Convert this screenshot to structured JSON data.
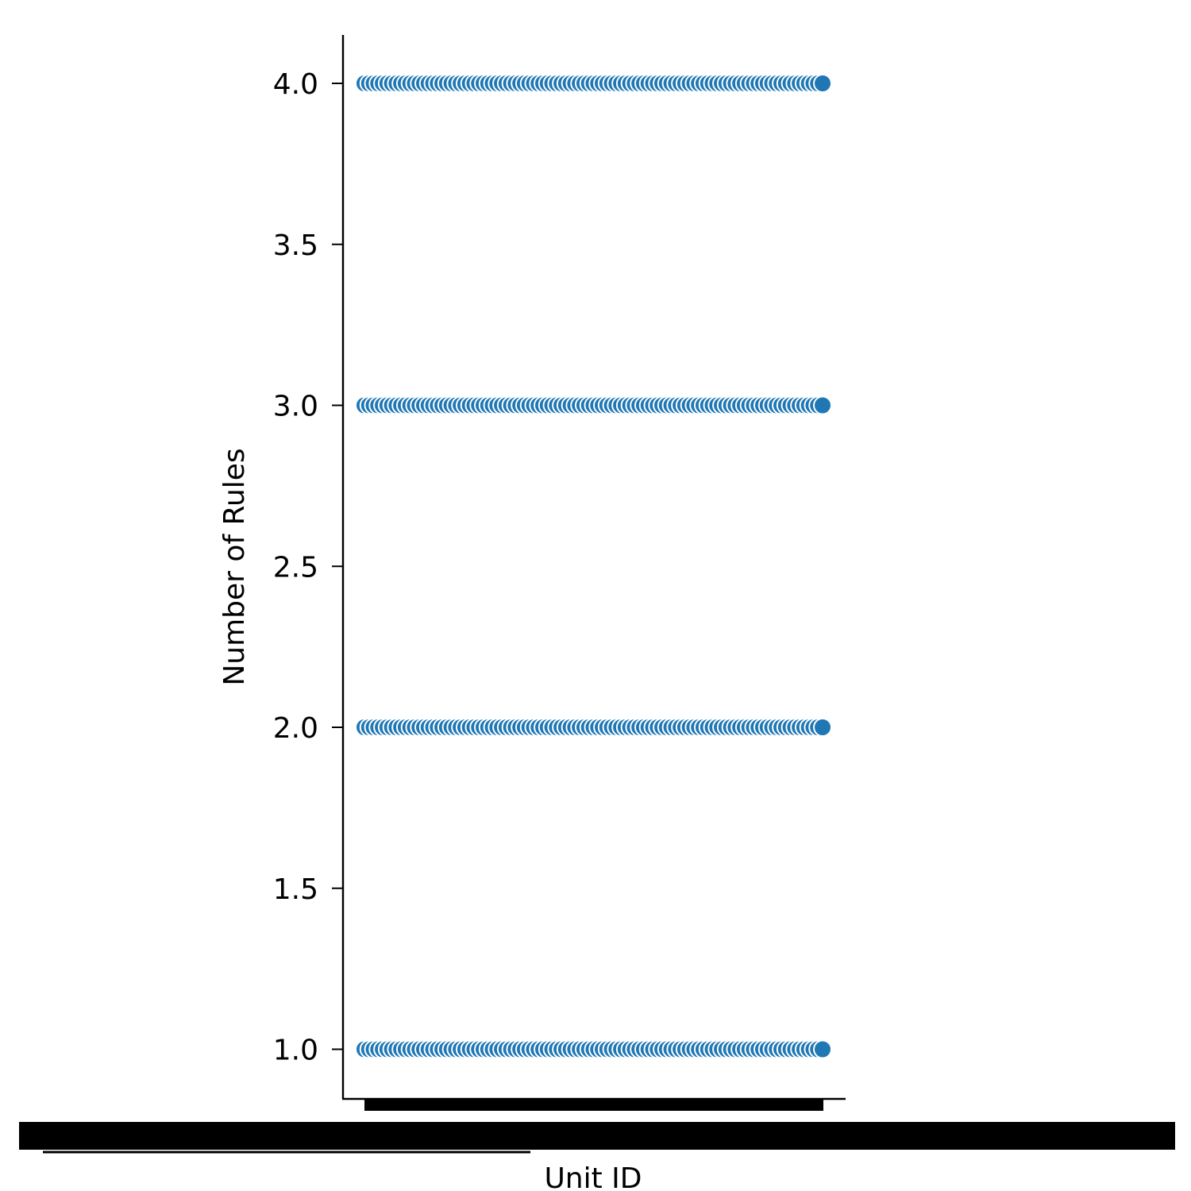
{
  "chart_data": {
    "type": "scatter",
    "title": "",
    "xlabel": "Unit ID",
    "ylabel": "Number of Rules",
    "ylim": [
      0.85,
      4.15
    ],
    "yticks": [
      1.0,
      1.5,
      2.0,
      2.5,
      3.0,
      3.5,
      4.0
    ],
    "ytick_labels": [
      "1.0",
      "1.5",
      "2.0",
      "2.5",
      "3.0",
      "3.5",
      "4.0"
    ],
    "x_ticks_note": "hundreds of categorical Unit ID tick labels overlap into an unreadable black band",
    "grid": false,
    "legend": "none",
    "color": "#1f77b4",
    "series": [
      {
        "x": [
          0.0,
          0.01,
          0.02,
          0.03,
          0.04,
          0.05,
          0.06,
          0.07,
          0.08,
          0.09,
          0.1,
          0.11,
          0.12,
          0.13,
          0.14,
          0.15,
          0.16,
          0.17,
          0.18,
          0.19,
          0.2,
          0.21,
          0.22,
          0.23,
          0.24,
          0.25,
          0.26,
          0.27,
          0.28,
          0.29,
          0.3,
          0.31,
          0.32,
          0.33,
          0.34,
          0.35,
          0.36,
          0.37,
          0.38,
          0.39,
          0.4,
          0.41,
          0.42,
          0.43,
          0.44,
          0.45,
          0.46,
          0.47,
          0.48,
          0.49,
          0.5,
          0.51,
          0.52,
          0.53,
          0.54,
          0.55,
          0.56,
          0.57,
          0.58,
          0.59,
          0.6,
          0.61,
          0.62,
          0.63,
          0.64,
          0.65,
          0.66,
          0.67,
          0.68,
          0.69,
          0.7,
          0.71,
          0.72,
          0.73,
          0.74,
          0.75,
          0.76,
          0.77,
          0.78,
          0.79,
          0.8,
          0.81,
          0.82,
          0.83,
          0.84,
          0.85,
          0.86,
          0.87,
          0.88,
          0.89,
          0.9,
          0.91,
          0.92,
          0.93,
          0.94,
          0.95,
          0.96,
          0.97,
          0.98,
          0.99,
          1.0
        ],
        "y": [
          4,
          4,
          4,
          4,
          4,
          4,
          4,
          4,
          4,
          4,
          4,
          4,
          4,
          4,
          4,
          4,
          4,
          4,
          4,
          4,
          4,
          4,
          4,
          4,
          4,
          4,
          4,
          4,
          4,
          4,
          4,
          4,
          4,
          4,
          4,
          4,
          4,
          4,
          4,
          4,
          4,
          4,
          4,
          4,
          4,
          4,
          4,
          4,
          4,
          4,
          4,
          4,
          4,
          4,
          4,
          4,
          4,
          4,
          4,
          4,
          4,
          4,
          4,
          4,
          4,
          4,
          4,
          4,
          4,
          4,
          4,
          4,
          4,
          4,
          4,
          4,
          4,
          4,
          4,
          4,
          4,
          4,
          4,
          4,
          4,
          4,
          4,
          4,
          4,
          4,
          4,
          4,
          4,
          4,
          4,
          4,
          4,
          4,
          4,
          4,
          4
        ]
      },
      {
        "x": [
          0.0,
          0.01,
          0.02,
          0.03,
          0.04,
          0.05,
          0.06,
          0.07,
          0.08,
          0.09,
          0.1,
          0.11,
          0.12,
          0.13,
          0.14,
          0.15,
          0.16,
          0.17,
          0.18,
          0.19,
          0.2,
          0.21,
          0.22,
          0.23,
          0.24,
          0.25,
          0.26,
          0.27,
          0.28,
          0.29,
          0.3,
          0.31,
          0.32,
          0.33,
          0.34,
          0.35,
          0.36,
          0.37,
          0.38,
          0.39,
          0.4,
          0.41,
          0.42,
          0.43,
          0.44,
          0.45,
          0.46,
          0.47,
          0.48,
          0.49,
          0.5,
          0.51,
          0.52,
          0.53,
          0.54,
          0.55,
          0.56,
          0.57,
          0.58,
          0.59,
          0.6,
          0.61,
          0.62,
          0.63,
          0.64,
          0.65,
          0.66,
          0.67,
          0.68,
          0.69,
          0.7,
          0.71,
          0.72,
          0.73,
          0.74,
          0.75,
          0.76,
          0.77,
          0.78,
          0.79,
          0.8,
          0.81,
          0.82,
          0.83,
          0.84,
          0.85,
          0.86,
          0.87,
          0.88,
          0.89,
          0.9,
          0.91,
          0.92,
          0.93,
          0.94,
          0.95,
          0.96,
          0.97,
          0.98,
          0.99,
          1.0
        ],
        "y": [
          3,
          3,
          3,
          3,
          3,
          3,
          3,
          3,
          3,
          3,
          3,
          3,
          3,
          3,
          3,
          3,
          3,
          3,
          3,
          3,
          3,
          3,
          3,
          3,
          3,
          3,
          3,
          3,
          3,
          3,
          3,
          3,
          3,
          3,
          3,
          3,
          3,
          3,
          3,
          3,
          3,
          3,
          3,
          3,
          3,
          3,
          3,
          3,
          3,
          3,
          3,
          3,
          3,
          3,
          3,
          3,
          3,
          3,
          3,
          3,
          3,
          3,
          3,
          3,
          3,
          3,
          3,
          3,
          3,
          3,
          3,
          3,
          3,
          3,
          3,
          3,
          3,
          3,
          3,
          3,
          3,
          3,
          3,
          3,
          3,
          3,
          3,
          3,
          3,
          3,
          3,
          3,
          3,
          3,
          3,
          3,
          3,
          3,
          3,
          3,
          3
        ]
      },
      {
        "x": [
          0.0,
          0.01,
          0.02,
          0.03,
          0.04,
          0.05,
          0.06,
          0.07,
          0.08,
          0.09,
          0.1,
          0.11,
          0.12,
          0.13,
          0.14,
          0.15,
          0.16,
          0.17,
          0.18,
          0.19,
          0.2,
          0.21,
          0.22,
          0.23,
          0.24,
          0.25,
          0.26,
          0.27,
          0.28,
          0.29,
          0.3,
          0.31,
          0.32,
          0.33,
          0.34,
          0.35,
          0.36,
          0.37,
          0.38,
          0.39,
          0.4,
          0.41,
          0.42,
          0.43,
          0.44,
          0.45,
          0.46,
          0.47,
          0.48,
          0.49,
          0.5,
          0.51,
          0.52,
          0.53,
          0.54,
          0.55,
          0.56,
          0.57,
          0.58,
          0.59,
          0.6,
          0.61,
          0.62,
          0.63,
          0.64,
          0.65,
          0.66,
          0.67,
          0.68,
          0.69,
          0.7,
          0.71,
          0.72,
          0.73,
          0.74,
          0.75,
          0.76,
          0.77,
          0.78,
          0.79,
          0.8,
          0.81,
          0.82,
          0.83,
          0.84,
          0.85,
          0.86,
          0.87,
          0.88,
          0.89,
          0.9,
          0.91,
          0.92,
          0.93,
          0.94,
          0.95,
          0.96,
          0.97,
          0.98,
          0.99,
          1.0
        ],
        "y": [
          2,
          2,
          2,
          2,
          2,
          2,
          2,
          2,
          2,
          2,
          2,
          2,
          2,
          2,
          2,
          2,
          2,
          2,
          2,
          2,
          2,
          2,
          2,
          2,
          2,
          2,
          2,
          2,
          2,
          2,
          2,
          2,
          2,
          2,
          2,
          2,
          2,
          2,
          2,
          2,
          2,
          2,
          2,
          2,
          2,
          2,
          2,
          2,
          2,
          2,
          2,
          2,
          2,
          2,
          2,
          2,
          2,
          2,
          2,
          2,
          2,
          2,
          2,
          2,
          2,
          2,
          2,
          2,
          2,
          2,
          2,
          2,
          2,
          2,
          2,
          2,
          2,
          2,
          2,
          2,
          2,
          2,
          2,
          2,
          2,
          2,
          2,
          2,
          2,
          2,
          2,
          2,
          2,
          2,
          2,
          2,
          2,
          2,
          2,
          2,
          2
        ]
      },
      {
        "x": [
          0.0,
          0.01,
          0.02,
          0.03,
          0.04,
          0.05,
          0.06,
          0.07,
          0.08,
          0.09,
          0.1,
          0.11,
          0.12,
          0.13,
          0.14,
          0.15,
          0.16,
          0.17,
          0.18,
          0.19,
          0.2,
          0.21,
          0.22,
          0.23,
          0.24,
          0.25,
          0.26,
          0.27,
          0.28,
          0.29,
          0.3,
          0.31,
          0.32,
          0.33,
          0.34,
          0.35,
          0.36,
          0.37,
          0.38,
          0.39,
          0.4,
          0.41,
          0.42,
          0.43,
          0.44,
          0.45,
          0.46,
          0.47,
          0.48,
          0.49,
          0.5,
          0.51,
          0.52,
          0.53,
          0.54,
          0.55,
          0.56,
          0.57,
          0.58,
          0.59,
          0.6,
          0.61,
          0.62,
          0.63,
          0.64,
          0.65,
          0.66,
          0.67,
          0.68,
          0.69,
          0.7,
          0.71,
          0.72,
          0.73,
          0.74,
          0.75,
          0.76,
          0.77,
          0.78,
          0.79,
          0.8,
          0.81,
          0.82,
          0.83,
          0.84,
          0.85,
          0.86,
          0.87,
          0.88,
          0.89,
          0.9,
          0.91,
          0.92,
          0.93,
          0.94,
          0.95,
          0.96,
          0.97,
          0.98,
          0.99,
          1.0
        ],
        "y": [
          1,
          1,
          1,
          1,
          1,
          1,
          1,
          1,
          1,
          1,
          1,
          1,
          1,
          1,
          1,
          1,
          1,
          1,
          1,
          1,
          1,
          1,
          1,
          1,
          1,
          1,
          1,
          1,
          1,
          1,
          1,
          1,
          1,
          1,
          1,
          1,
          1,
          1,
          1,
          1,
          1,
          1,
          1,
          1,
          1,
          1,
          1,
          1,
          1,
          1,
          1,
          1,
          1,
          1,
          1,
          1,
          1,
          1,
          1,
          1,
          1,
          1,
          1,
          1,
          1,
          1,
          1,
          1,
          1,
          1,
          1,
          1,
          1,
          1,
          1,
          1,
          1,
          1,
          1,
          1,
          1,
          1,
          1,
          1,
          1,
          1,
          1,
          1,
          1,
          1,
          1,
          1,
          1,
          1,
          1,
          1,
          1,
          1,
          1,
          1,
          1
        ]
      }
    ]
  }
}
